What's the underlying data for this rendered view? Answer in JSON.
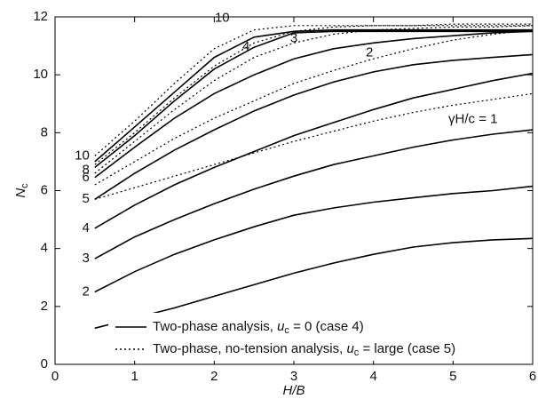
{
  "chart_data": {
    "type": "line",
    "x_label": "H/B",
    "y_label": [
      "N",
      "c"
    ],
    "x": [
      0.5,
      1,
      1.5,
      2,
      2.5,
      3,
      3.5,
      4,
      4.5,
      5,
      5.5,
      6
    ],
    "xlim": [
      0,
      6
    ],
    "xticks": [
      0,
      1,
      2,
      3,
      4,
      5,
      6
    ],
    "ylim": [
      0,
      12
    ],
    "yticks": [
      0,
      2,
      4,
      6,
      8,
      10,
      12
    ],
    "series": [
      {
        "name": null,
        "style": "solid",
        "color": "#000000",
        "values": [
          1.25,
          1.6,
          1.95,
          2.35,
          2.75,
          3.15,
          3.5,
          3.8,
          4.05,
          4.2,
          4.3,
          4.35
        ]
      },
      {
        "name": "2",
        "style": "solid",
        "color": "#000000",
        "values": [
          2.5,
          3.2,
          3.8,
          4.3,
          4.75,
          5.15,
          5.4,
          5.6,
          5.75,
          5.9,
          6.0,
          6.15
        ]
      },
      {
        "name": "3",
        "style": "solid",
        "color": "#000000",
        "values": [
          3.65,
          4.4,
          5.0,
          5.55,
          6.05,
          6.5,
          6.9,
          7.2,
          7.5,
          7.75,
          7.95,
          8.1
        ]
      },
      {
        "name": "4",
        "style": "solid",
        "color": "#000000",
        "values": [
          4.7,
          5.5,
          6.2,
          6.8,
          7.35,
          7.9,
          8.35,
          8.8,
          9.2,
          9.5,
          9.8,
          10.05
        ]
      },
      {
        "name": "5",
        "style": "solid",
        "color": "#000000",
        "values": [
          5.7,
          6.6,
          7.4,
          8.1,
          8.75,
          9.3,
          9.75,
          10.1,
          10.35,
          10.5,
          10.6,
          10.7
        ]
      },
      {
        "name": "6",
        "style": "solid",
        "color": "#000000",
        "values": [
          6.45,
          7.5,
          8.5,
          9.35,
          10.0,
          10.55,
          10.9,
          11.1,
          11.25,
          11.35,
          11.45,
          11.5
        ]
      },
      {
        "name": "8",
        "style": "solid",
        "color": "#000000",
        "values": [
          6.8,
          7.9,
          9.1,
          10.2,
          10.95,
          11.45,
          11.5,
          11.5,
          11.5,
          11.5,
          11.5,
          11.5
        ]
      },
      {
        "name": "10",
        "style": "solid",
        "color": "#000000",
        "values": [
          7.0,
          8.2,
          9.4,
          10.6,
          11.3,
          11.5,
          11.55,
          11.55,
          11.55,
          11.55,
          11.55,
          11.55
        ]
      },
      {
        "name": "γH/c = 1",
        "style": "dotted",
        "color": "#000000",
        "values": [
          5.7,
          6.1,
          6.5,
          6.9,
          7.3,
          7.7,
          8.05,
          8.4,
          8.7,
          8.95,
          9.15,
          9.35
        ]
      },
      {
        "name": "2",
        "style": "dotted",
        "color": "#000000",
        "values": [
          6.2,
          7.0,
          7.8,
          8.5,
          9.1,
          9.7,
          10.15,
          10.55,
          10.9,
          11.2,
          11.4,
          11.55
        ]
      },
      {
        "name": "3",
        "style": "dotted",
        "color": "#000000",
        "values": [
          6.6,
          7.7,
          8.8,
          9.8,
          10.6,
          11.1,
          11.4,
          11.55,
          11.6,
          11.65,
          11.65,
          11.7
        ]
      },
      {
        "name": "4",
        "style": "dotted",
        "color": "#000000",
        "values": [
          6.9,
          8.0,
          9.2,
          10.3,
          11.1,
          11.5,
          11.65,
          11.7,
          11.7,
          11.7,
          11.7,
          11.7
        ]
      },
      {
        "name": "10",
        "style": "dotted",
        "color": "#000000",
        "values": [
          7.2,
          8.4,
          9.7,
          10.9,
          11.55,
          11.7,
          11.7,
          11.7,
          11.7,
          11.75,
          11.75,
          11.75
        ]
      }
    ],
    "legend": [
      {
        "style": "solid",
        "text": [
          "Two-phase analysis, ",
          "u",
          "c",
          " = 0 (case 4)"
        ]
      },
      {
        "style": "dotted",
        "text": [
          "Two-phase, no-tension analysis, ",
          "u",
          "c",
          " = large (case 5)"
        ]
      }
    ]
  }
}
